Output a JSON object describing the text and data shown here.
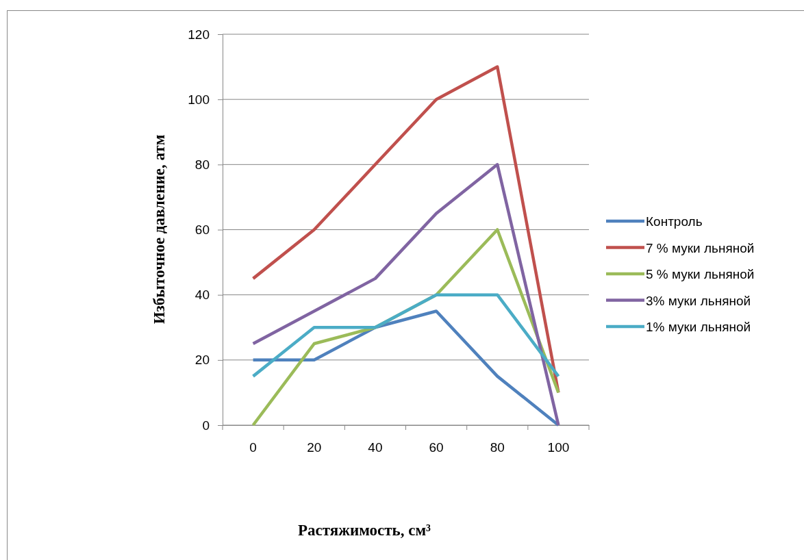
{
  "chart_data": {
    "type": "line",
    "xlabel": "Растяжимость, см³",
    "ylabel": "Избыточное давление,  атм",
    "categories": [
      "0",
      "20",
      "40",
      "60",
      "80",
      "100"
    ],
    "ylim": [
      0,
      120
    ],
    "yticks": [
      0,
      20,
      40,
      60,
      80,
      100,
      120
    ],
    "grid": "y",
    "legend": "right",
    "marker": "none",
    "line_style": "solid",
    "series": [
      {
        "name": "Контроль",
        "color": "#4f81bd",
        "values": [
          20,
          20,
          30,
          35,
          15,
          0
        ]
      },
      {
        "name": "7 % муки льняной",
        "color": "#c0504d",
        "values": [
          45,
          60,
          80,
          100,
          110,
          10
        ]
      },
      {
        "name": "5 % муки льняной",
        "color": "#9bbb59",
        "values": [
          0,
          25,
          30,
          40,
          60,
          10
        ]
      },
      {
        "name": "3% муки льняной",
        "color": "#8064a2",
        "values": [
          25,
          35,
          45,
          65,
          80,
          0
        ]
      },
      {
        "name": "1% муки льняной",
        "color": "#4bacc6",
        "values": [
          15,
          30,
          30,
          40,
          40,
          15
        ]
      }
    ]
  }
}
